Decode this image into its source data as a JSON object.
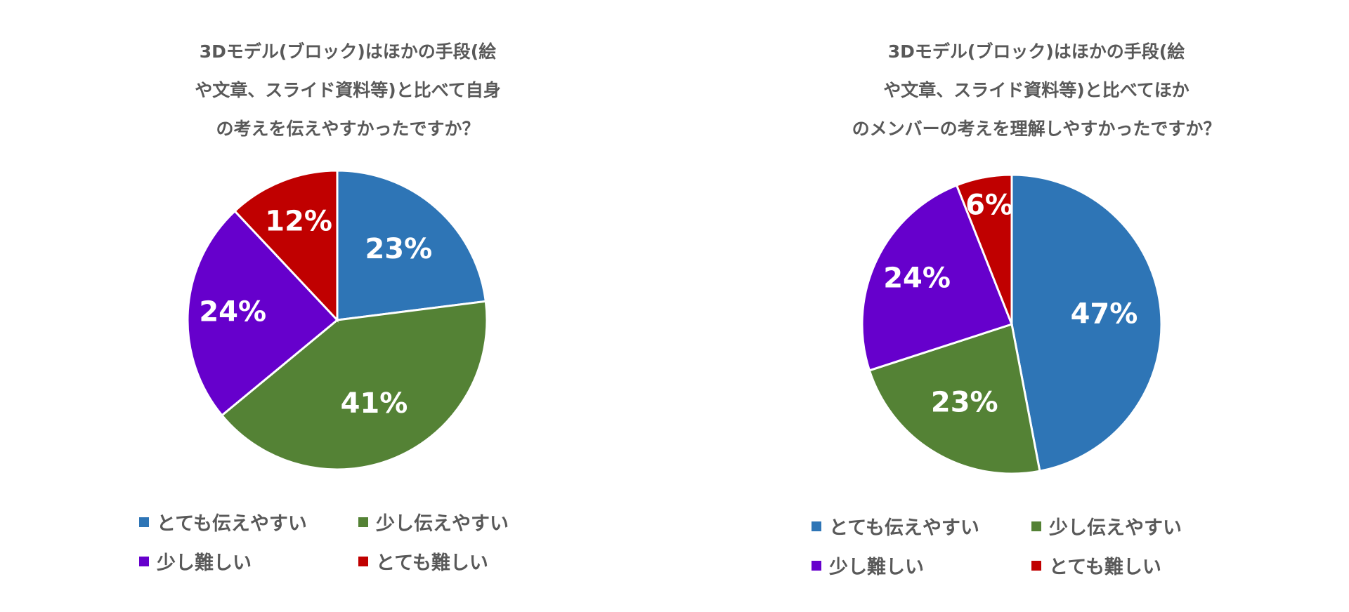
{
  "chart_data": [
    {
      "type": "pie",
      "title": [
        "3Dモデル(ブロック)はほかの手段(絵",
        "や文章、スライド資料等)と比べて自身",
        "の考えを伝えやすかったですか？"
      ],
      "categories": [
        "とても伝えやすい",
        "少し伝えやすい",
        "少し難しい",
        "とても難しい"
      ],
      "values": [
        23,
        41,
        24,
        12
      ],
      "labels": [
        "23%",
        "41%",
        "24%",
        "12%"
      ],
      "colors": [
        "#2E75B6",
        "#548235",
        "#6600CC",
        "#C00000"
      ],
      "legend_position": "bottom"
    },
    {
      "type": "pie",
      "title": [
        "3Dモデル(ブロック)はほかの手段(絵",
        "や文章、スライド資料等)と比べてほか",
        "のメンバーの考えを理解しやすかったですか？"
      ],
      "categories": [
        "とても伝えやすい",
        "少し伝えやすい",
        "少し難しい",
        "とても難しい"
      ],
      "values": [
        47,
        23,
        24,
        6
      ],
      "labels": [
        "47%",
        "23%",
        "24%",
        "6%"
      ],
      "colors": [
        "#2E75B6",
        "#548235",
        "#6600CC",
        "#C00000"
      ],
      "legend_position": "bottom"
    }
  ]
}
